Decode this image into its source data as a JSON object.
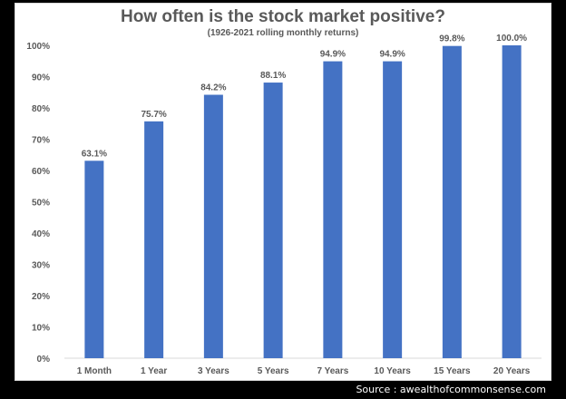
{
  "chart_data": {
    "type": "bar",
    "title": "How often is the stock market positive?",
    "subtitle": "(1926-2021 rolling monthly returns)",
    "categories": [
      "1 Month",
      "1 Year",
      "3 Years",
      "5 Years",
      "7 Years",
      "10 Years",
      "15 Years",
      "20 Years"
    ],
    "values": [
      63.1,
      75.7,
      84.2,
      88.1,
      94.9,
      94.9,
      99.8,
      100.0
    ],
    "data_labels": [
      "63.1%",
      "75.7%",
      "84.2%",
      "88.1%",
      "94.9%",
      "94.9%",
      "99.8%",
      "100.0%"
    ],
    "y_ticks": [
      "0%",
      "10%",
      "20%",
      "30%",
      "40%",
      "50%",
      "60%",
      "70%",
      "80%",
      "90%",
      "100%"
    ],
    "ylim": [
      0,
      100
    ],
    "xlabel": "",
    "ylabel": "",
    "grid": false,
    "bar_color": "#4472c4"
  },
  "source_credit": "Source : awealthofcommonsense.com"
}
